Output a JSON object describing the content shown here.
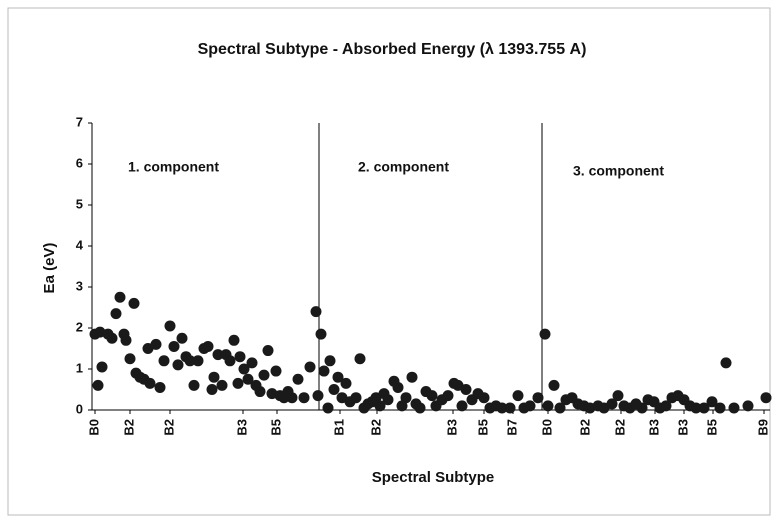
{
  "chart_data": {
    "type": "scatter",
    "title": "Spectral Subtype - Absorbed Energy (λ 1393.755 A)",
    "x_label": "Spectral Subtype",
    "y_label": "Ea (eV)",
    "annotations": [
      "1. component",
      "2. component",
      "3. component"
    ],
    "dividers": [
      227,
      450
    ],
    "color": "#1a1a1a",
    "grid": false,
    "xlim": [
      0,
      678
    ],
    "ylim": [
      0,
      7
    ],
    "yticks": [
      0,
      1,
      2,
      3,
      4,
      5,
      6,
      7
    ],
    "xticks": [
      {
        "value": 3,
        "label": "B0"
      },
      {
        "value": 38,
        "label": "B2"
      },
      {
        "value": 78,
        "label": "B2"
      },
      {
        "value": 151,
        "label": "B3"
      },
      {
        "value": 185,
        "label": "B5"
      },
      {
        "value": 248,
        "label": "B1"
      },
      {
        "value": 285,
        "label": "B2"
      },
      {
        "value": 361,
        "label": "B3"
      },
      {
        "value": 392,
        "label": "B5"
      },
      {
        "value": 421,
        "label": "B7"
      },
      {
        "value": 456,
        "label": "B0"
      },
      {
        "value": 494,
        "label": "B2"
      },
      {
        "value": 529,
        "label": "B2"
      },
      {
        "value": 563,
        "label": "B3"
      },
      {
        "value": 592,
        "label": "B3"
      },
      {
        "value": 621,
        "label": "B5"
      },
      {
        "value": 672,
        "label": "B9"
      }
    ],
    "x": [
      3,
      6,
      10,
      8,
      16,
      20,
      24,
      28,
      32,
      34,
      38,
      42,
      44,
      48,
      52,
      56,
      58,
      64,
      68,
      72,
      78,
      82,
      86,
      90,
      94,
      98,
      102,
      106,
      112,
      116,
      120,
      122,
      126,
      130,
      134,
      138,
      142,
      146,
      148,
      152,
      156,
      160,
      164,
      168,
      172,
      176,
      180,
      184,
      188,
      192,
      196,
      200,
      206,
      212,
      218,
      224,
      226,
      229,
      232,
      236,
      238,
      242,
      246,
      250,
      254,
      258,
      264,
      268,
      272,
      276,
      280,
      284,
      288,
      292,
      296,
      302,
      306,
      310,
      314,
      320,
      324,
      328,
      334,
      340,
      344,
      350,
      356,
      362,
      366,
      370,
      374,
      380,
      386,
      392,
      398,
      404,
      410,
      418,
      426,
      432,
      438,
      446,
      453,
      456,
      462,
      468,
      474,
      480,
      486,
      492,
      498,
      506,
      512,
      520,
      526,
      532,
      538,
      544,
      550,
      556,
      562,
      568,
      574,
      580,
      586,
      592,
      598,
      604,
      612,
      620,
      628,
      634,
      642,
      656,
      674
    ],
    "values": [
      1.85,
      0.6,
      1.05,
      1.9,
      1.85,
      1.75,
      2.35,
      2.75,
      1.85,
      1.7,
      1.25,
      2.6,
      0.9,
      0.8,
      0.75,
      1.5,
      0.65,
      1.6,
      0.55,
      1.2,
      2.05,
      1.55,
      1.1,
      1.75,
      1.3,
      1.2,
      0.6,
      1.2,
      1.5,
      1.55,
      0.5,
      0.8,
      1.35,
      0.6,
      1.35,
      1.2,
      1.7,
      0.65,
      1.3,
      1.0,
      0.75,
      1.15,
      0.6,
      0.45,
      0.85,
      1.45,
      0.4,
      0.95,
      0.35,
      0.3,
      0.45,
      0.3,
      0.75,
      0.3,
      1.05,
      2.4,
      0.35,
      1.85,
      0.95,
      0.05,
      1.2,
      0.5,
      0.8,
      0.3,
      0.65,
      0.2,
      0.3,
      1.25,
      0.05,
      0.15,
      0.2,
      0.3,
      0.1,
      0.4,
      0.25,
      0.7,
      0.55,
      0.1,
      0.3,
      0.8,
      0.15,
      0.05,
      0.45,
      0.35,
      0.1,
      0.25,
      0.35,
      0.65,
      0.6,
      0.1,
      0.5,
      0.25,
      0.4,
      0.3,
      0.05,
      0.1,
      0.05,
      0.05,
      0.35,
      0.05,
      0.1,
      0.3,
      1.85,
      0.1,
      0.6,
      0.05,
      0.25,
      0.3,
      0.15,
      0.1,
      0.05,
      0.1,
      0.05,
      0.15,
      0.35,
      0.1,
      0.05,
      0.15,
      0.05,
      0.25,
      0.2,
      0.05,
      0.1,
      0.3,
      0.35,
      0.25,
      0.1,
      0.05,
      0.05,
      0.2,
      0.05,
      1.15,
      0.05,
      0.1,
      0.3
    ]
  }
}
